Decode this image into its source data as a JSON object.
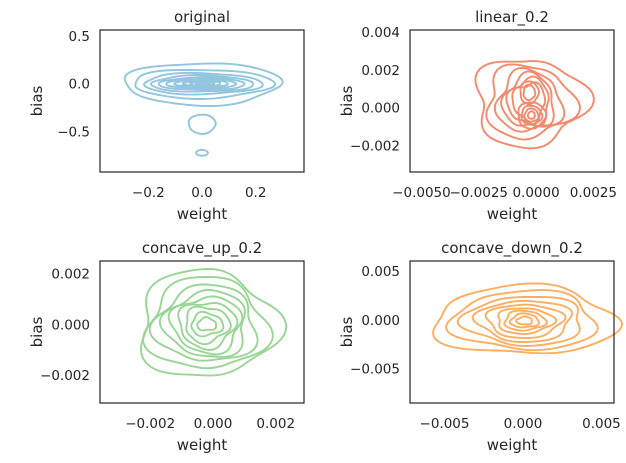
{
  "chart_data": [
    {
      "type": "kde-contour",
      "title": "original",
      "xlabel": "weight",
      "ylabel": "bias",
      "xlim": [
        -0.38,
        0.38
      ],
      "ylim": [
        -0.92,
        0.56
      ],
      "xticks": [
        -0.2,
        0.0,
        0.2
      ],
      "xtick_labels": [
        "−0.2",
        "0.0",
        "0.2"
      ],
      "yticks": [
        0.5,
        0.0,
        -0.5
      ],
      "ytick_labels": [
        "0.5",
        "0.0",
        "−0.5"
      ],
      "color": "#92c5de",
      "blobs": [
        {
          "cx": 0.0,
          "cy": 0.0,
          "rx": [
            0.29,
            0.26,
            0.22,
            0.19,
            0.16,
            0.13,
            0.1,
            0.07,
            0.045,
            0.025
          ],
          "ry": [
            0.22,
            0.15,
            0.11,
            0.085,
            0.065,
            0.05,
            0.038,
            0.028,
            0.018,
            0.01
          ],
          "wobble": 0.05
        },
        {
          "cx": 0.0,
          "cy": -0.42,
          "rx": [
            0.05
          ],
          "ry": [
            0.1
          ],
          "wobble": 0.03
        },
        {
          "cx": 0.0,
          "cy": -0.72,
          "rx": [
            0.022
          ],
          "ry": [
            0.03
          ],
          "wobble": 0.0
        }
      ]
    },
    {
      "type": "kde-contour",
      "title": "linear_0.2",
      "xlabel": "weight",
      "ylabel": "bias",
      "xlim": [
        -0.0055,
        0.0034
      ],
      "ylim": [
        -0.0034,
        0.0041
      ],
      "xticks": [
        -0.005,
        -0.0025,
        0.0,
        0.0025
      ],
      "xtick_labels": [
        "−0.0050",
        "−0.0025",
        "0.0000",
        "0.0025"
      ],
      "yticks": [
        0.004,
        0.002,
        0.0,
        -0.002
      ],
      "ytick_labels": [
        "0.004",
        "0.002",
        "0.000",
        "−0.002"
      ],
      "color": "#f4896c",
      "blobs": [
        {
          "cx": -0.0003,
          "cy": 0.0003,
          "rx": [
            0.0024,
            0.0019,
            0.0014,
            0.0011,
            0.0009,
            0.0007
          ],
          "ry": [
            0.0023,
            0.0019,
            0.0016,
            0.0014,
            0.0012,
            0.001
          ],
          "wobble": 0.12
        },
        {
          "cx": -0.0003,
          "cy": 0.0008,
          "rx": [
            0.0004,
            0.00025
          ],
          "ry": [
            0.0006,
            0.0004
          ],
          "wobble": 0.05
        },
        {
          "cx": -0.0002,
          "cy": -0.0004,
          "rx": [
            0.0006,
            0.00045,
            0.0003,
            0.00015
          ],
          "ry": [
            0.0007,
            0.0005,
            0.00035,
            0.0002
          ],
          "wobble": 0.05
        }
      ]
    },
    {
      "type": "kde-contour",
      "title": "concave_up_0.2",
      "xlabel": "weight",
      "ylabel": "bias",
      "xlim": [
        -0.0036,
        0.0029
      ],
      "ylim": [
        -0.0031,
        0.0025
      ],
      "xticks": [
        -0.002,
        0.0,
        0.002
      ],
      "xtick_labels": [
        "−0.002",
        "0.000",
        "0.002"
      ],
      "yticks": [
        0.002,
        0.0,
        -0.002
      ],
      "ytick_labels": [
        "0.002",
        "0.000",
        "−0.002"
      ],
      "color": "#99d594",
      "blobs": [
        {
          "cx": -0.0002,
          "cy": 0.0,
          "rx": [
            0.0022,
            0.0019,
            0.0016,
            0.0013,
            0.0011,
            0.0009,
            0.0007,
            0.0005,
            0.0003
          ],
          "ry": [
            0.0021,
            0.0018,
            0.0015,
            0.0013,
            0.0011,
            0.0009,
            0.0007,
            0.00045,
            0.00025
          ],
          "wobble": 0.1
        }
      ]
    },
    {
      "type": "kde-contour",
      "title": "concave_down_0.2",
      "xlabel": "weight",
      "ylabel": "bias",
      "xlim": [
        -0.0072,
        0.0058
      ],
      "ylim": [
        -0.0085,
        0.006
      ],
      "xticks": [
        -0.005,
        0.0,
        0.005
      ],
      "xtick_labels": [
        "−0.005",
        "0.000",
        "0.005"
      ],
      "yticks": [
        0.005,
        0.0,
        -0.005
      ],
      "ytick_labels": [
        "0.005",
        "0.000",
        "−0.005"
      ],
      "color": "#fdae61",
      "blobs": [
        {
          "cx": 0.0001,
          "cy": -0.0001,
          "rx": [
            0.0058,
            0.0046,
            0.0038,
            0.003,
            0.0024,
            0.0018,
            0.0013,
            0.0009,
            0.0005
          ],
          "ry": [
            0.0035,
            0.003,
            0.0025,
            0.0021,
            0.0017,
            0.0013,
            0.001,
            0.0007,
            0.0004
          ],
          "wobble": 0.08
        }
      ]
    }
  ]
}
